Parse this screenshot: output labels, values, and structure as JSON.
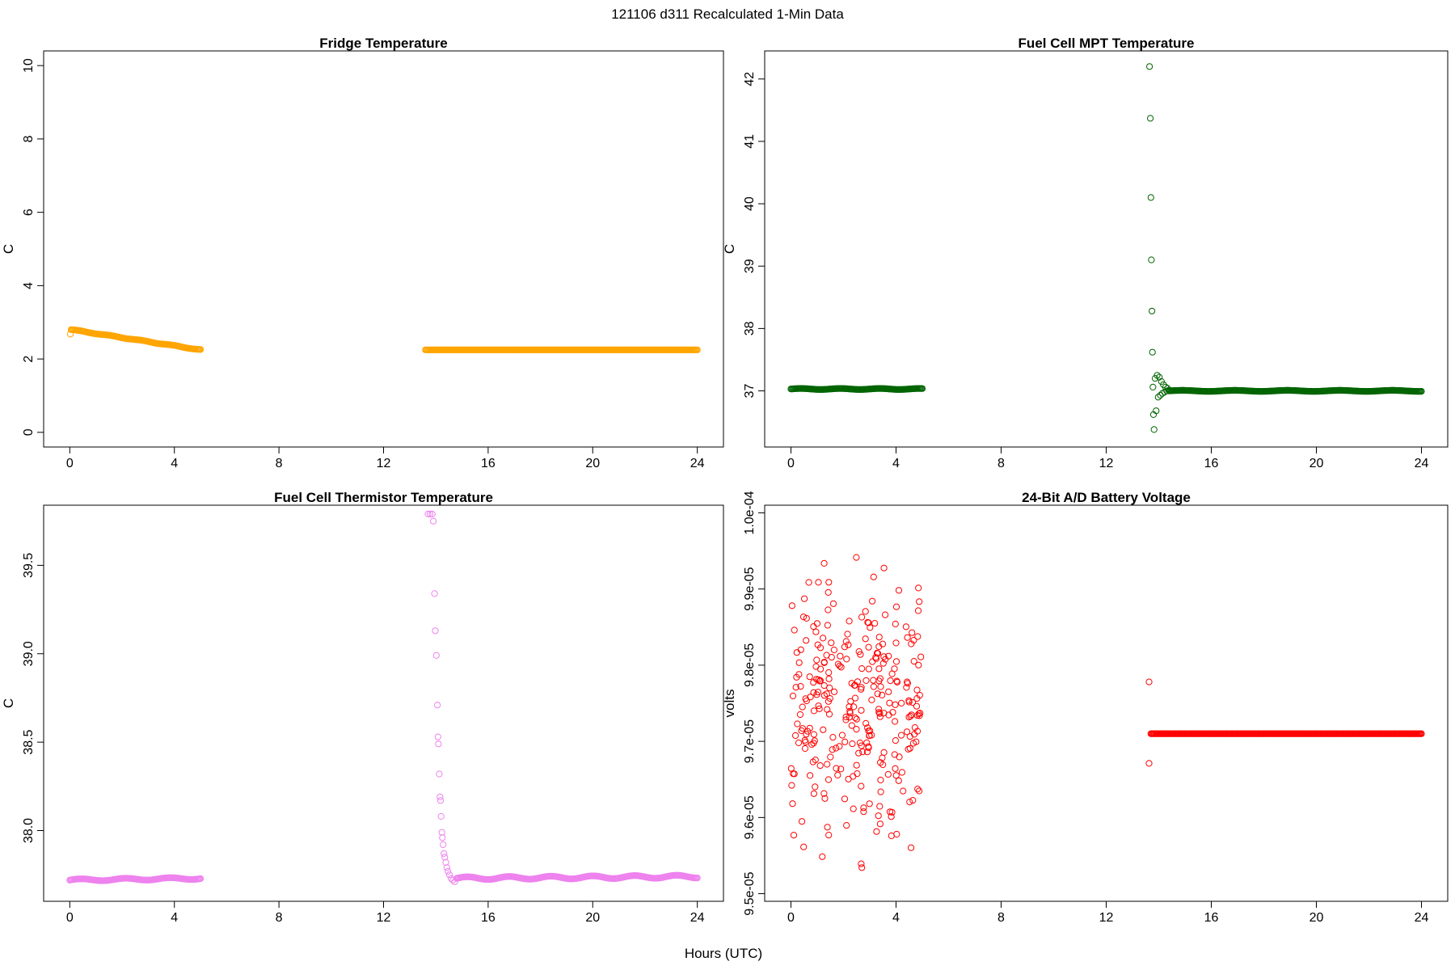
{
  "figure": {
    "title": "121106   d311   Recalculated 1-Min Data",
    "xlabel": "Hours (UTC)"
  },
  "chart_data": [
    {
      "type": "scatter",
      "title": "Fridge Temperature",
      "ylabel": "C",
      "xlim": [
        -1,
        25
      ],
      "ylim": [
        -0.4,
        10.4
      ],
      "xticks": [
        0,
        4,
        8,
        12,
        16,
        20,
        24
      ],
      "yticks": [
        0,
        2,
        4,
        6,
        8,
        10
      ],
      "ytick_labels": [
        "0",
        "2",
        "4",
        "6",
        "8",
        "10"
      ],
      "color": "#FFA500",
      "segments": [
        {
          "x_start": 0.05,
          "x_end": 5.0,
          "y_start": 2.8,
          "y_end": 2.25,
          "wave_amp": 0.01,
          "wave_period": 1.2
        },
        {
          "x_start": 13.6,
          "x_end": 24.0,
          "y_start": 2.25,
          "y_end": 2.25,
          "wave_amp": 0.0,
          "wave_period": 1.0
        }
      ],
      "extra_points": [
        [
          0.02,
          2.68
        ]
      ]
    },
    {
      "type": "scatter",
      "title": "Fuel Cell MPT Temperature",
      "ylabel": "C",
      "xlim": [
        -1,
        25
      ],
      "ylim": [
        36.1,
        42.45
      ],
      "xticks": [
        0,
        4,
        8,
        12,
        16,
        20,
        24
      ],
      "yticks": [
        37,
        38,
        39,
        40,
        41,
        42
      ],
      "ytick_labels": [
        "37",
        "38",
        "39",
        "40",
        "41",
        "42"
      ],
      "color": "#006400",
      "segments": [
        {
          "x_start": 0.0,
          "x_end": 5.0,
          "y_start": 37.03,
          "y_end": 37.03,
          "wave_amp": 0.008,
          "wave_period": 1.5
        },
        {
          "x_start": 14.4,
          "x_end": 24.0,
          "y_start": 37.0,
          "y_end": 37.0,
          "wave_amp": 0.008,
          "wave_period": 2.0
        }
      ],
      "extra_points": [
        [
          13.65,
          42.2
        ],
        [
          13.68,
          41.37
        ],
        [
          13.7,
          40.1
        ],
        [
          13.72,
          39.1
        ],
        [
          13.74,
          38.28
        ],
        [
          13.76,
          37.62
        ],
        [
          13.78,
          37.06
        ],
        [
          13.8,
          36.62
        ],
        [
          13.82,
          36.38
        ],
        [
          13.86,
          37.2
        ],
        [
          13.9,
          36.68
        ],
        [
          13.94,
          37.25
        ],
        [
          13.98,
          36.9
        ],
        [
          14.02,
          37.22
        ],
        [
          14.06,
          36.93
        ],
        [
          14.1,
          37.15
        ],
        [
          14.14,
          36.96
        ],
        [
          14.18,
          37.1
        ],
        [
          14.22,
          36.98
        ],
        [
          14.26,
          37.06
        ],
        [
          14.3,
          37.0
        ],
        [
          14.34,
          37.04
        ],
        [
          14.38,
          37.01
        ]
      ]
    },
    {
      "type": "scatter",
      "title": "Fuel Cell Thermistor Temperature",
      "ylabel": "C",
      "xlim": [
        -1,
        25
      ],
      "ylim": [
        37.6,
        39.84
      ],
      "xticks": [
        0,
        4,
        8,
        12,
        16,
        20,
        24
      ],
      "yticks": [
        38.0,
        38.5,
        39.0,
        39.5
      ],
      "ytick_labels": [
        "38.0",
        "38.5",
        "39.0",
        "39.5"
      ],
      "color": "#EE82EE",
      "segments": [
        {
          "x_start": 0.0,
          "x_end": 5.0,
          "y_start": 37.72,
          "y_end": 37.73,
          "wave_amp": 0.006,
          "wave_period": 1.7
        },
        {
          "x_start": 14.8,
          "x_end": 24.0,
          "y_start": 37.73,
          "y_end": 37.74,
          "wave_amp": 0.008,
          "wave_period": 1.6
        }
      ],
      "extra_points": [
        [
          13.7,
          39.79
        ],
        [
          13.78,
          39.79
        ],
        [
          13.86,
          39.79
        ],
        [
          13.9,
          39.75
        ],
        [
          13.95,
          39.34
        ],
        [
          13.98,
          39.13
        ],
        [
          14.02,
          38.99
        ],
        [
          14.06,
          38.71
        ],
        [
          14.08,
          38.53
        ],
        [
          14.1,
          38.49
        ],
        [
          14.13,
          38.32
        ],
        [
          14.16,
          38.19
        ],
        [
          14.18,
          38.17
        ],
        [
          14.2,
          38.08
        ],
        [
          14.23,
          37.99
        ],
        [
          14.25,
          37.96
        ],
        [
          14.28,
          37.92
        ],
        [
          14.31,
          37.87
        ],
        [
          14.34,
          37.85
        ],
        [
          14.38,
          37.82
        ],
        [
          14.42,
          37.79
        ],
        [
          14.46,
          37.77
        ],
        [
          14.52,
          37.75
        ],
        [
          14.58,
          37.73
        ],
        [
          14.65,
          37.72
        ],
        [
          14.72,
          37.71
        ]
      ]
    },
    {
      "type": "scatter",
      "title": "24-Bit A/D Battery Voltage",
      "ylabel": "volts",
      "xlim": [
        -1,
        25
      ],
      "ylim": [
        9.49e-05,
        0.0001001
      ],
      "xticks": [
        0,
        4,
        8,
        12,
        16,
        20,
        24
      ],
      "yticks": [
        9.5e-05,
        9.6e-05,
        9.7e-05,
        9.8e-05,
        9.9e-05,
        0.0001
      ],
      "ytick_labels": [
        "9.5e-05",
        "9.6e-05",
        "9.7e-05",
        "9.8e-05",
        "9.9e-05",
        "1.0e-04"
      ],
      "color": "#FF0000",
      "scatter_cloud": {
        "x_start": 0.0,
        "x_end": 5.0,
        "count": 300,
        "y_min": 9.5e-05,
        "y_max": 9.99e-05
      },
      "segments": [
        {
          "x_start": 13.7,
          "x_end": 24.0,
          "y_start": 9.71e-05,
          "y_end": 9.71e-05,
          "wave_amp": 0.0,
          "wave_period": 1.0
        }
      ],
      "extra_points": [
        [
          13.63,
          9.778e-05
        ],
        [
          13.63,
          9.671e-05
        ]
      ]
    }
  ]
}
